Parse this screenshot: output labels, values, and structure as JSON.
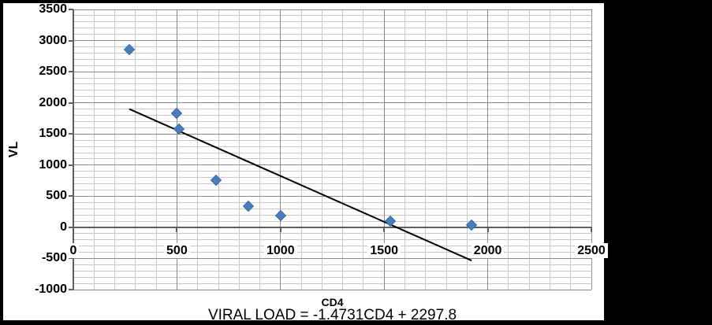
{
  "image": {
    "canvas_background": "#000000",
    "chart_background": "#ffffff"
  },
  "chart_data": {
    "type": "scatter",
    "title": "",
    "xlabel": "CD4",
    "ylabel": "VL",
    "caption": "VIRAL LOAD = -1.4731CD4 + 2297.8",
    "xlim": [
      0,
      2500
    ],
    "ylim": [
      -1000,
      3500
    ],
    "x_major_unit": 500,
    "y_major_unit": 500,
    "x_minor_unit": 100,
    "y_minor_unit": 100,
    "x_tick_labels": [
      "0",
      "500",
      "1000",
      "1500",
      "2000",
      "2500"
    ],
    "y_tick_labels": [
      "3500",
      "3000",
      "2500",
      "2000",
      "1500",
      "1000",
      "500",
      "0",
      "-500",
      "-1000"
    ],
    "grid": "major and minor gridlines on both axes",
    "legend": "none",
    "series": [
      {
        "marker": "diamond",
        "marker_color": "#4a7ebb",
        "marker_edge_color": "#3a68a4",
        "points": [
          [
            270,
            2850
          ],
          [
            500,
            1830
          ],
          [
            510,
            1580
          ],
          [
            690,
            760
          ],
          [
            845,
            340
          ],
          [
            1000,
            190
          ],
          [
            1530,
            100
          ],
          [
            1920,
            40
          ]
        ]
      }
    ],
    "trendline": {
      "slope": -1.4731,
      "intercept": 2297.8,
      "x_range": [
        270,
        1922
      ],
      "color": "#000000"
    },
    "colors": {
      "major_grid": "#8a8a8a",
      "minor_grid": "#c7c7c7",
      "axis_line": "#5f5f5f",
      "tick_text": "#000000"
    }
  }
}
